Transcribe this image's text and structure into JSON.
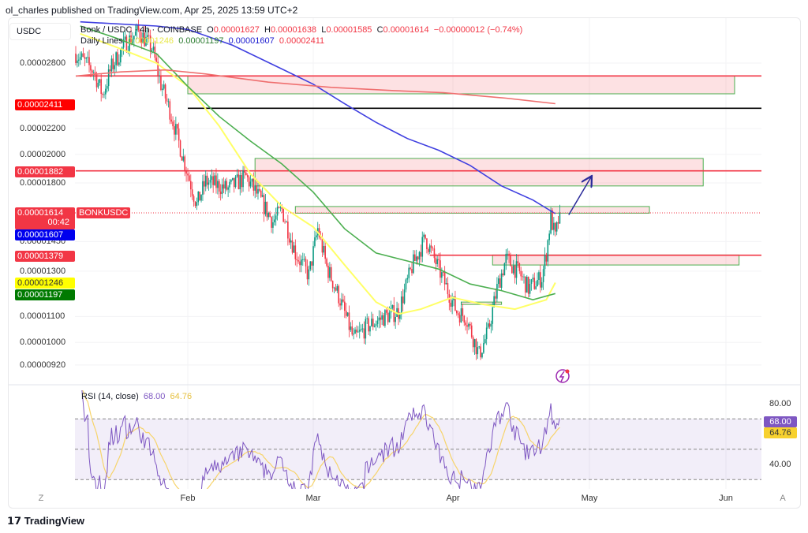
{
  "publisher_line": "ol_charles published on TradingView.com, Apr 25, 2025 13:59 UTC+2",
  "currency": "USDC",
  "legend": {
    "symbol": "Bonk / USDC · 4h · COINBASE",
    "o_label": "O",
    "o": "0.00001627",
    "h_label": "H",
    "h": "0.00001638",
    "l_label": "L",
    "l": "0.00001585",
    "c_label": "C",
    "c": "0.00001614",
    "change": "−0.00000012 (−0.74%)",
    "ma_label": "Daily Lines",
    "ma_yellow": "0.00001246",
    "ma_green": "0.00001197",
    "ma_blue": "0.00001607",
    "ma_red": "0.00002411"
  },
  "price_ticks": [
    "0.00002800",
    "0.00002200",
    "0.00002000",
    "0.00001800",
    "0.00001450",
    "0.00001300",
    "0.00001100",
    "0.00001000",
    "0.00000920"
  ],
  "markers": {
    "ma_red": "0.00002411",
    "resist": "0.00001882",
    "last": "0.00001614",
    "countdown": "00:42",
    "ma_blue": "0.00001607",
    "support": "0.00001379",
    "ma_yellow": "0.00001246",
    "ma_green": "0.00001197",
    "symbol_tag": "BONKUSDC"
  },
  "time_labels": [
    "Feb",
    "Mar",
    "Apr",
    "May",
    "Jun"
  ],
  "rsi": {
    "label": "RSI (14, close)",
    "value": "68.00",
    "ma": "64.76",
    "ticks": [
      "80.00",
      "40.00"
    ]
  },
  "buttons": {
    "zoom": "Z",
    "auto": "A"
  },
  "brand": "TradingView",
  "colors": {
    "up": "#089981",
    "down": "#f23645",
    "yellow": "#ffff66",
    "green": "#4caf50",
    "blue": "#3f3fe0",
    "red_ma": "#ef6f6f",
    "rsi": "#7e57c2",
    "rsi_ma": "#f7d46b"
  },
  "chart_data": {
    "type": "candlestick",
    "scale": "log",
    "timeframe": "4h",
    "price_keypoints": [
      [
        "2025-01-07",
        2.9e-05
      ],
      [
        "2025-01-11",
        2.72e-05
      ],
      [
        "2025-01-13",
        2.49e-05
      ],
      [
        "2025-01-15",
        2.76e-05
      ],
      [
        "2025-01-18",
        3e-05
      ],
      [
        "2025-01-21",
        3.15e-05
      ],
      [
        "2025-01-24",
        2.96e-05
      ],
      [
        "2025-01-26",
        2.59e-05
      ],
      [
        "2025-01-28",
        2.35e-05
      ],
      [
        "2025-01-31",
        1.97e-05
      ],
      [
        "2025-02-03",
        1.66e-05
      ],
      [
        "2025-02-05",
        1.81e-05
      ],
      [
        "2025-02-10",
        1.76e-05
      ],
      [
        "2025-02-14",
        1.84e-05
      ],
      [
        "2025-02-17",
        1.7e-05
      ],
      [
        "2025-02-20",
        1.56e-05
      ],
      [
        "2025-02-22",
        1.63e-05
      ],
      [
        "2025-02-25",
        1.39e-05
      ],
      [
        "2025-02-28",
        1.28e-05
      ],
      [
        "2025-03-02",
        1.52e-05
      ],
      [
        "2025-03-04",
        1.32e-05
      ],
      [
        "2025-03-07",
        1.17e-05
      ],
      [
        "2025-03-10",
        1.01e-05
      ],
      [
        "2025-03-13",
        1.06e-05
      ],
      [
        "2025-03-17",
        1.1e-05
      ],
      [
        "2025-03-20",
        1.12e-05
      ],
      [
        "2025-03-23",
        1.32e-05
      ],
      [
        "2025-03-26",
        1.47e-05
      ],
      [
        "2025-03-28",
        1.36e-05
      ],
      [
        "2025-03-30",
        1.26e-05
      ],
      [
        "2025-04-02",
        1.12e-05
      ],
      [
        "2025-04-04",
        1.1e-05
      ],
      [
        "2025-04-07",
        9.55e-06
      ],
      [
        "2025-04-09",
        1.04e-05
      ],
      [
        "2025-04-11",
        1.22e-05
      ],
      [
        "2025-04-13",
        1.36e-05
      ],
      [
        "2025-04-16",
        1.29e-05
      ],
      [
        "2025-04-18",
        1.22e-05
      ],
      [
        "2025-04-21",
        1.27e-05
      ],
      [
        "2025-04-22",
        1.39e-05
      ],
      [
        "2025-04-23",
        1.59e-05
      ],
      [
        "2025-04-24",
        1.47e-05
      ],
      [
        "2025-04-25",
        1.614e-05
      ]
    ],
    "ma_lines": {
      "yellow": [
        [
          "2025-01-08",
          3.12e-05
        ],
        [
          "2025-01-16",
          2.97e-05
        ],
        [
          "2025-01-25",
          2.8e-05
        ],
        [
          "2025-02-01",
          2.57e-05
        ],
        [
          "2025-02-08",
          2.22e-05
        ],
        [
          "2025-02-15",
          1.86e-05
        ],
        [
          "2025-02-22",
          1.65e-05
        ],
        [
          "2025-03-01",
          1.53e-05
        ],
        [
          "2025-03-08",
          1.33e-05
        ],
        [
          "2025-03-15",
          1.16e-05
        ],
        [
          "2025-03-20",
          1.11e-05
        ],
        [
          "2025-03-25",
          1.13e-05
        ],
        [
          "2025-04-01",
          1.18e-05
        ],
        [
          "2025-04-08",
          1.15e-05
        ],
        [
          "2025-04-15",
          1.13e-05
        ],
        [
          "2025-04-22",
          1.17e-05
        ],
        [
          "2025-04-24",
          1.246e-05
        ]
      ],
      "green": [
        [
          "2025-01-08",
          3.21e-05
        ],
        [
          "2025-01-16",
          3.07e-05
        ],
        [
          "2025-01-25",
          2.9e-05
        ],
        [
          "2025-02-01",
          2.57e-05
        ],
        [
          "2025-02-08",
          2.3e-05
        ],
        [
          "2025-02-15",
          2.1e-05
        ],
        [
          "2025-02-22",
          1.93e-05
        ],
        [
          "2025-03-01",
          1.74e-05
        ],
        [
          "2025-03-08",
          1.52e-05
        ],
        [
          "2025-03-15",
          1.39e-05
        ],
        [
          "2025-03-22",
          1.35e-05
        ],
        [
          "2025-03-29",
          1.31e-05
        ],
        [
          "2025-04-05",
          1.24e-05
        ],
        [
          "2025-04-12",
          1.21e-05
        ],
        [
          "2025-04-19",
          1.17e-05
        ],
        [
          "2025-04-24",
          1.197e-05
        ]
      ],
      "blue": [
        [
          "2025-01-08",
          3.26e-05
        ],
        [
          "2025-01-25",
          3.21e-05
        ],
        [
          "2025-02-01",
          3.17e-05
        ],
        [
          "2025-02-11",
          2.99e-05
        ],
        [
          "2025-02-22",
          2.74e-05
        ],
        [
          "2025-03-01",
          2.59e-05
        ],
        [
          "2025-03-08",
          2.41e-05
        ],
        [
          "2025-03-15",
          2.25e-05
        ],
        [
          "2025-03-22",
          2.12e-05
        ],
        [
          "2025-03-29",
          2.03e-05
        ],
        [
          "2025-04-05",
          1.92e-05
        ],
        [
          "2025-04-12",
          1.78e-05
        ],
        [
          "2025-04-19",
          1.69e-05
        ],
        [
          "2025-04-24",
          1.607e-05
        ]
      ],
      "red": [
        [
          "2025-01-07",
          2.67e-05
        ],
        [
          "2025-01-17",
          2.71e-05
        ],
        [
          "2025-01-27",
          2.73e-05
        ],
        [
          "2025-02-05",
          2.69e-05
        ],
        [
          "2025-02-19",
          2.61e-05
        ],
        [
          "2025-03-05",
          2.56e-05
        ],
        [
          "2025-03-19",
          2.53e-05
        ],
        [
          "2025-03-30",
          2.51e-05
        ],
        [
          "2025-04-13",
          2.46e-05
        ],
        [
          "2025-04-24",
          2.411e-05
        ]
      ]
    },
    "horizontal_lines": [
      {
        "price": 2.67e-05,
        "from": "2025-01-07",
        "color": "#f23645"
      },
      {
        "price": 2.37e-05,
        "from": "2025-02-01",
        "color": "#000000"
      },
      {
        "price": 1.882e-05,
        "from": "2025-01-07",
        "color": "#f23645"
      },
      {
        "price": 1.379e-05,
        "from": "2025-03-27",
        "color": "#f23645"
      }
    ],
    "zones": [
      {
        "from": "2025-02-01",
        "to": "2025-06-03",
        "top": 2.67e-05,
        "bottom": 2.5e-05
      },
      {
        "from": "2025-02-16",
        "to": "2025-05-27",
        "top": 1.97e-05,
        "bottom": 1.78e-05
      },
      {
        "from": "2025-02-25",
        "to": "2025-05-15",
        "top": 1.65e-05,
        "bottom": 1.61e-05
      },
      {
        "from": "2025-04-10",
        "to": "2025-06-04",
        "top": 1.38e-05,
        "bottom": 1.33e-05
      },
      {
        "from": "2025-04-03",
        "to": "2025-04-12",
        "top": 1.16e-05,
        "bottom": 1.15e-05
      }
    ],
    "arrow": {
      "from": [
        "2025-04-27",
        1.6e-05
      ],
      "to": [
        "2025-05-02",
        1.84e-05
      ]
    },
    "rsi_levels": [
      70,
      50,
      30
    ],
    "rsi_range": [
      20,
      90
    ]
  }
}
